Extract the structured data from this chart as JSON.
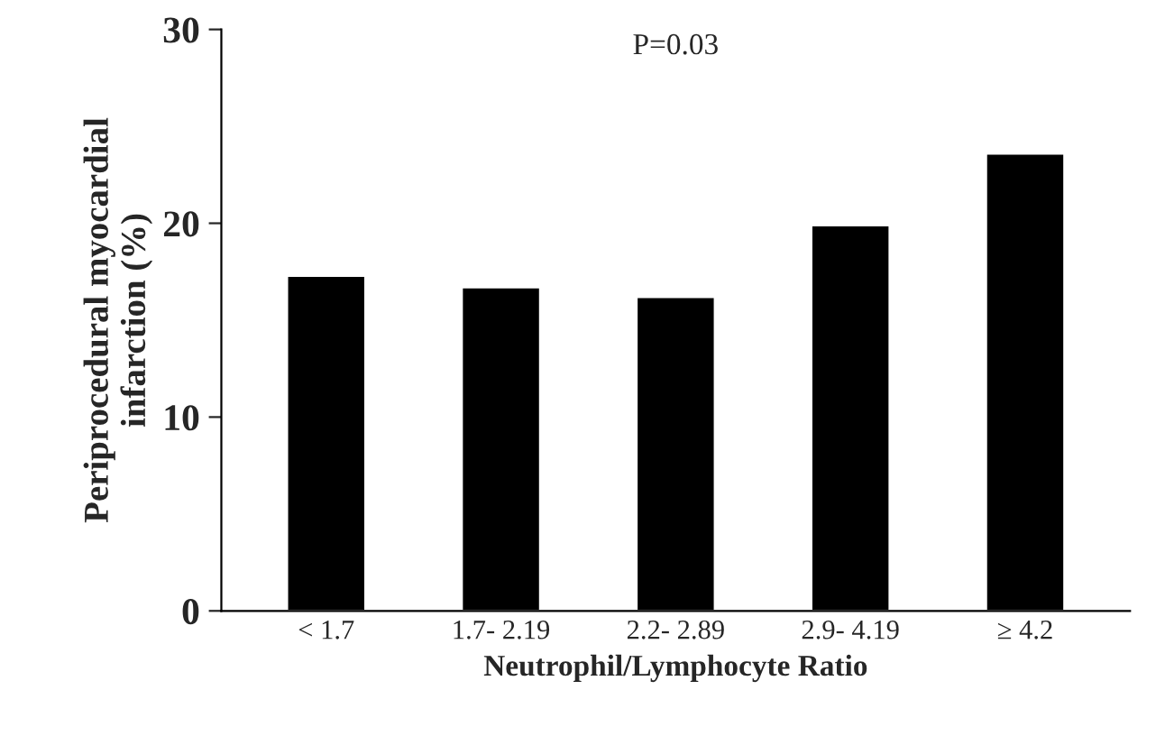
{
  "chart_data": {
    "type": "bar",
    "xlabel": "Neutrophil/Lymphocyte Ratio",
    "ylabel": "Periprocedural myocardial\ninfarction (%)",
    "categories": [
      "< 1.7",
      "1.7- 2.19",
      "2.2- 2.89",
      "2.9- 4.19",
      "≥ 4.2"
    ],
    "values": [
      17.3,
      16.7,
      16.2,
      19.9,
      23.6
    ],
    "color": "#000000",
    "ylim": [
      0,
      30
    ],
    "yticks": [
      0,
      10,
      20,
      30
    ],
    "grid": false,
    "legend": false,
    "annotations": [
      "P=0.03"
    ]
  }
}
